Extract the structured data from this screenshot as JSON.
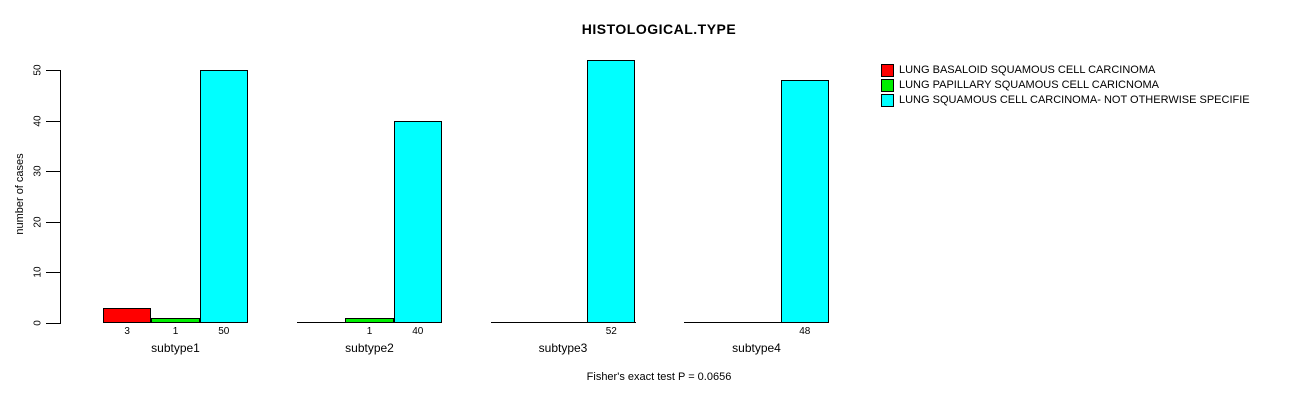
{
  "figure": {
    "background": "#ffffff"
  },
  "chart_data": {
    "type": "bar",
    "title": "HISTOLOGICAL.TYPE",
    "xlabel": "",
    "ylabel": "number of cases",
    "categories": [
      "subtype1",
      "subtype2",
      "subtype3",
      "subtype4"
    ],
    "series": [
      {
        "name": "LUNG BASALOID SQUAMOUS CELL CARCINOMA",
        "color": "#ff0000",
        "values": [
          3,
          0,
          0,
          0
        ]
      },
      {
        "name": "LUNG PAPILLARY SQUAMOUS CELL CARICNOMA",
        "color": "#00ee00",
        "values": [
          1,
          1,
          0,
          0
        ]
      },
      {
        "name": "LUNG SQUAMOUS CELL CARCINOMA- NOT OTHERWISE SPECIFIE",
        "color": "#00ffff",
        "values": [
          50,
          40,
          52,
          48
        ]
      }
    ],
    "bar_value_labels": [
      [
        "3",
        "1",
        "50"
      ],
      [
        "",
        "1",
        "40"
      ],
      [
        "",
        "",
        "52"
      ],
      [
        "",
        "",
        "48"
      ]
    ],
    "ylim": [
      0,
      50
    ],
    "yticks": [
      0,
      10,
      20,
      30,
      40,
      50
    ],
    "grid": false,
    "legend_position": "right",
    "annotation": "Fisher's exact test P = 0.0656"
  }
}
